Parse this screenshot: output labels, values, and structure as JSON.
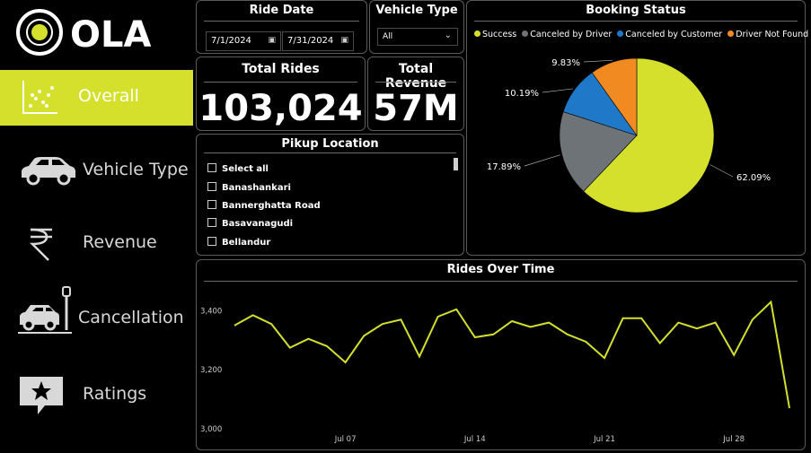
{
  "app": {
    "brand": "OLA"
  },
  "sidebar": {
    "items": [
      {
        "label": "Overall",
        "icon": "scatter-chart-icon",
        "active": true
      },
      {
        "label": "Vehicle Type",
        "icon": "car-icon",
        "active": false
      },
      {
        "label": "Revenue",
        "icon": "rupee-icon",
        "active": false
      },
      {
        "label": "Cancellation",
        "icon": "car-parking-icon",
        "active": false
      },
      {
        "label": "Ratings",
        "icon": "star-comment-icon",
        "active": false
      }
    ]
  },
  "filters": {
    "ride_date": {
      "title": "Ride Date",
      "start": "7/1/2024",
      "end": "7/31/2024"
    },
    "vehicle_type": {
      "title": "Vehicle Type",
      "value": "All"
    }
  },
  "kpis": {
    "total_rides": {
      "title": "Total Rides",
      "value": "103,024"
    },
    "total_revenue": {
      "title": "Total Revenue",
      "value": "57M"
    }
  },
  "pickup": {
    "title": "Pikup Location",
    "items": [
      "Select all",
      "Banashankari",
      "Bannerghatta Road",
      "Basavanagudi",
      "Bellandur"
    ]
  },
  "colors": {
    "accent": "#d4e02b",
    "success": "#d4e02b",
    "driver_cancel": "#6e7378",
    "customer_cancel": "#1f78c8",
    "not_found": "#f28a22"
  },
  "chart_data": [
    {
      "type": "pie",
      "title": "Booking Status",
      "categories": [
        "Success",
        "Canceled by Driver",
        "Canceled by Customer",
        "Driver Not Found"
      ],
      "values": [
        62.09,
        17.89,
        10.19,
        9.83
      ],
      "labels": [
        "62.09%",
        "17.89%",
        "10.19%",
        "9.83%"
      ],
      "colors": [
        "#d4e02b",
        "#6e7378",
        "#1f78c8",
        "#f28a22"
      ],
      "legend": "top"
    },
    {
      "type": "line",
      "title": "Rides Over Time",
      "x": [
        "2024-07-01",
        "2024-07-02",
        "2024-07-03",
        "2024-07-04",
        "2024-07-05",
        "2024-07-06",
        "2024-07-07",
        "2024-07-08",
        "2024-07-09",
        "2024-07-10",
        "2024-07-11",
        "2024-07-12",
        "2024-07-13",
        "2024-07-14",
        "2024-07-15",
        "2024-07-16",
        "2024-07-17",
        "2024-07-18",
        "2024-07-19",
        "2024-07-20",
        "2024-07-21",
        "2024-07-22",
        "2024-07-23",
        "2024-07-24",
        "2024-07-25",
        "2024-07-26",
        "2024-07-27",
        "2024-07-28",
        "2024-07-29",
        "2024-07-30",
        "2024-07-31"
      ],
      "series": [
        {
          "values": [
            3350,
            3385,
            3355,
            3275,
            3305,
            3280,
            3225,
            3315,
            3355,
            3370,
            3245,
            3380,
            3405,
            3310,
            3320,
            3365,
            3345,
            3360,
            3320,
            3295,
            3240,
            3375,
            3375,
            3290,
            3360,
            3340,
            3360,
            3250,
            3370,
            3430,
            3070
          ]
        }
      ],
      "yticks": [
        "3,000",
        "3,200",
        "3,400"
      ],
      "xticks": [
        "Jul 07",
        "Jul 14",
        "Jul 21",
        "Jul 28"
      ],
      "ylim": [
        3000,
        3450
      ],
      "grid": false,
      "stroke": "#d4e02b"
    }
  ]
}
